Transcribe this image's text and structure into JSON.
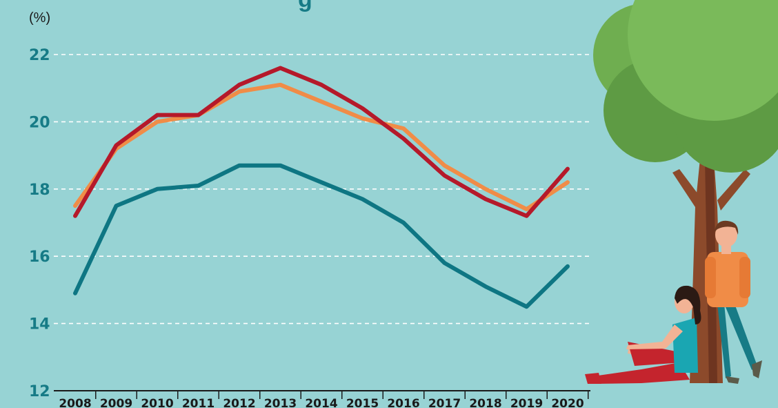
{
  "chart_data": {
    "type": "line",
    "title_fragment": "g",
    "unit_label": "(%)",
    "x": [
      "2008",
      "2009",
      "2010",
      "2011",
      "2012",
      "2013",
      "2014",
      "2015",
      "2016",
      "2017",
      "2018",
      "2019",
      "2020"
    ],
    "y_ticks": [
      "12",
      "14",
      "16",
      "18",
      "20",
      "22"
    ],
    "ylim": [
      12,
      22
    ],
    "grid": true,
    "grid_style": "dashed",
    "series": [
      {
        "color": "#b5192a",
        "values": [
          17.2,
          19.3,
          20.2,
          20.2,
          21.1,
          21.6,
          21.1,
          20.4,
          19.5,
          18.4,
          17.7,
          17.2,
          18.6
        ]
      },
      {
        "color": "#f08c47",
        "values": [
          17.5,
          19.2,
          20.0,
          20.2,
          20.9,
          21.1,
          20.6,
          20.1,
          19.8,
          18.7,
          18.0,
          17.4,
          18.2
        ]
      },
      {
        "color": "#0e7683",
        "values": [
          14.9,
          17.5,
          18.0,
          18.1,
          18.7,
          18.7,
          18.2,
          17.7,
          17.0,
          15.8,
          15.1,
          14.5,
          15.7
        ]
      }
    ]
  },
  "illustration": {
    "description_icon": "tree-with-two-people-icon",
    "colors": {
      "leaf_light": "#7aba5a",
      "leaf_dark": "#5e9b44",
      "trunk": "#8c4a2b"
    }
  }
}
